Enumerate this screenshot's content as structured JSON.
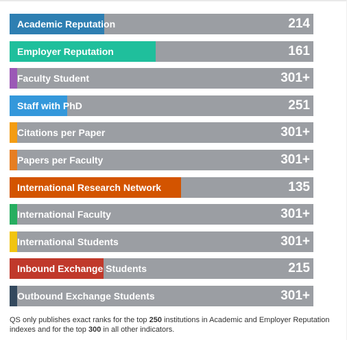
{
  "indicators": [
    {
      "label": "Academic Reputation",
      "rank": "214",
      "fill": 0.312,
      "color": "#2e7fb2"
    },
    {
      "label": "Employer Reputation",
      "rank": "161",
      "fill": 0.481,
      "color": "#1fbf9c"
    },
    {
      "label": "Faculty Student",
      "rank": "301+",
      "fill": 0.025,
      "color": "#9b59b6"
    },
    {
      "label": "Staff with PhD",
      "rank": "251",
      "fill": 0.19,
      "color": "#3498db"
    },
    {
      "label": "Citations per Paper",
      "rank": "301+",
      "fill": 0.025,
      "color": "#f39c12"
    },
    {
      "label": "Papers per Faculty",
      "rank": "301+",
      "fill": 0.025,
      "color": "#e67e22"
    },
    {
      "label": "International Research Network",
      "rank": "135",
      "fill": 0.564,
      "color": "#d35400"
    },
    {
      "label": "International Faculty",
      "rank": "301+",
      "fill": 0.025,
      "color": "#27ae60"
    },
    {
      "label": "International Students",
      "rank": "301+",
      "fill": 0.025,
      "color": "#f1c40f"
    },
    {
      "label": "Inbound Exchange Students",
      "rank": "215",
      "fill": 0.309,
      "color": "#c0392b"
    },
    {
      "label": "Outbound Exchange Students",
      "rank": "301+",
      "fill": 0.025,
      "color": "#34495e"
    }
  ],
  "footnote": {
    "part1": "QS only publishes exact ranks for the top ",
    "num1": "250",
    "part2": " institutions in Academic and Employer Reputation indexes and for the top ",
    "num2": "300",
    "part3": " in all other indicators."
  }
}
